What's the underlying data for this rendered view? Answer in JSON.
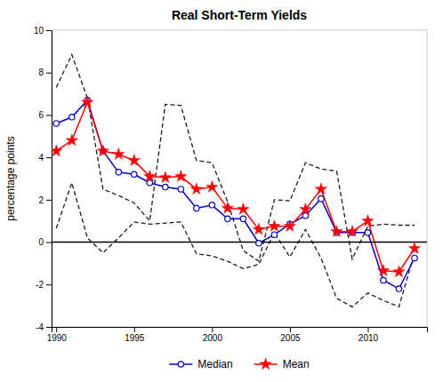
{
  "chart_data": {
    "type": "line",
    "title": "Real Short-Term Yields",
    "ylabel": "percentage points",
    "x": [
      1990,
      1991,
      1992,
      1993,
      1994,
      1995,
      1996,
      1997,
      1998,
      1999,
      2000,
      2001,
      2002,
      2003,
      2004,
      2005,
      2006,
      2007,
      2008,
      2009,
      2010,
      2011,
      2012,
      2013
    ],
    "xlim": [
      1989.7,
      2013.8
    ],
    "xticks": [
      1990,
      1995,
      2000,
      2005,
      2010
    ],
    "ylim": [
      -4,
      10
    ],
    "yticks": [
      -4,
      -2,
      0,
      2,
      4,
      6,
      8,
      10
    ],
    "hline": 0,
    "grid": false,
    "legend": "bottom",
    "series": [
      {
        "color": "#1a1a1a",
        "line_style": "dashed",
        "values": [
          7.3,
          8.85,
          6.8,
          2.5,
          2.2,
          1.85,
          1.0,
          6.5,
          6.45,
          3.85,
          3.75,
          1.9,
          -0.4,
          -0.9,
          2.0,
          1.95,
          3.75,
          3.45,
          3.35,
          -0.8,
          0.75,
          0.85,
          0.8,
          0.8
        ]
      },
      {
        "color": "#1a1a1a",
        "line_style": "dashed",
        "values": [
          0.65,
          2.8,
          0.2,
          -0.5,
          0.2,
          0.95,
          0.85,
          0.9,
          0.95,
          -0.55,
          -0.65,
          -0.9,
          -1.25,
          -1.05,
          0.45,
          -0.7,
          0.6,
          -0.75,
          -2.65,
          -3.05,
          -2.4,
          -2.75,
          -3.05,
          -0.5
        ]
      },
      {
        "name": "Median",
        "color": "#0000cd",
        "line_style": "solid",
        "marker": "circle",
        "values": [
          5.6,
          5.9,
          6.7,
          4.3,
          3.3,
          3.2,
          2.8,
          2.6,
          2.5,
          1.6,
          1.75,
          1.1,
          1.1,
          -0.05,
          0.35,
          0.85,
          1.25,
          2.05,
          0.45,
          0.45,
          0.45,
          -1.8,
          -2.2,
          -0.75
        ]
      },
      {
        "name": "Mean",
        "color": "#ff0000",
        "line_style": "solid",
        "marker": "star",
        "values": [
          4.3,
          4.8,
          6.6,
          4.3,
          4.15,
          3.85,
          3.1,
          3.05,
          3.1,
          2.5,
          2.6,
          1.6,
          1.55,
          0.6,
          0.75,
          0.75,
          1.55,
          2.5,
          0.5,
          0.5,
          1.0,
          -1.35,
          -1.4,
          -0.3
        ]
      }
    ]
  }
}
